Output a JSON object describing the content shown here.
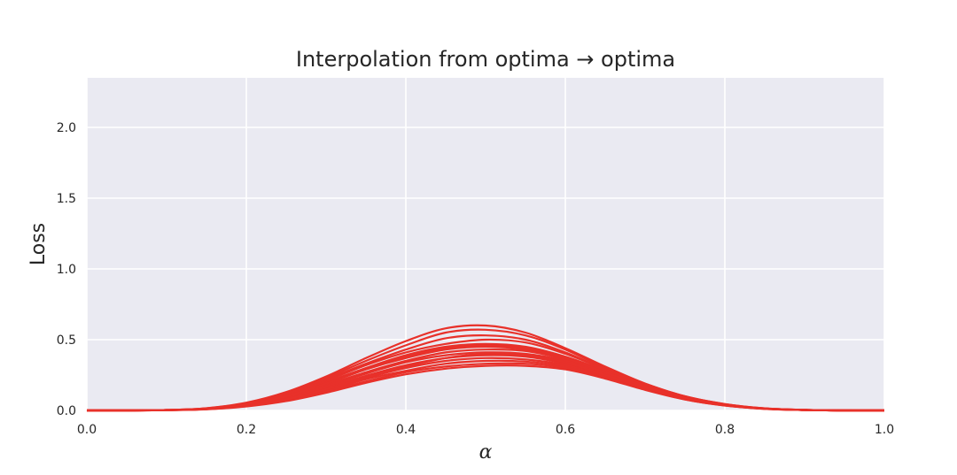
{
  "chart_data": {
    "type": "line",
    "title": "Interpolation from optima → optima",
    "xlabel": "α",
    "ylabel": "Loss",
    "xlim": [
      0.0,
      1.0
    ],
    "ylim": [
      0.0,
      2.35
    ],
    "xticks": [
      0.0,
      0.2,
      0.4,
      0.6,
      0.8,
      1.0
    ],
    "xtick_labels": [
      "0.0",
      "0.2",
      "0.4",
      "0.6",
      "0.8",
      "1.0"
    ],
    "yticks": [
      0.0,
      0.5,
      1.0,
      1.5,
      2.0
    ],
    "ytick_labels": [
      "0.0",
      "0.5",
      "1.0",
      "1.5",
      "2.0"
    ],
    "grid": true,
    "background_color": "#eaeaf2",
    "grid_color": "#ffffff",
    "line_color": "#e8312a",
    "x": [
      0.0,
      0.05,
      0.1,
      0.15,
      0.2,
      0.25,
      0.3,
      0.35,
      0.4,
      0.45,
      0.5,
      0.55,
      0.6,
      0.65,
      0.7,
      0.75,
      0.8,
      0.85,
      0.9,
      0.95,
      1.0
    ],
    "series": [
      {
        "values": [
          0.0,
          0.0,
          0.003,
          0.016,
          0.055,
          0.13,
          0.24,
          0.37,
          0.49,
          0.58,
          0.6,
          0.55,
          0.44,
          0.31,
          0.19,
          0.1,
          0.045,
          0.015,
          0.004,
          0.0,
          0.0
        ]
      },
      {
        "values": [
          0.0,
          0.0,
          0.003,
          0.015,
          0.052,
          0.125,
          0.23,
          0.35,
          0.46,
          0.55,
          0.57,
          0.53,
          0.43,
          0.3,
          0.19,
          0.1,
          0.045,
          0.015,
          0.004,
          0.0,
          0.0
        ]
      },
      {
        "values": [
          0.0,
          0.0,
          0.003,
          0.014,
          0.05,
          0.118,
          0.22,
          0.33,
          0.43,
          0.51,
          0.53,
          0.5,
          0.41,
          0.29,
          0.18,
          0.095,
          0.042,
          0.014,
          0.004,
          0.0,
          0.0
        ]
      },
      {
        "values": [
          0.0,
          0.0,
          0.003,
          0.013,
          0.047,
          0.11,
          0.21,
          0.32,
          0.41,
          0.47,
          0.5,
          0.48,
          0.4,
          0.29,
          0.18,
          0.095,
          0.042,
          0.014,
          0.004,
          0.0,
          0.0
        ]
      },
      {
        "values": [
          0.0,
          0.0,
          0.003,
          0.013,
          0.045,
          0.105,
          0.2,
          0.3,
          0.39,
          0.45,
          0.47,
          0.45,
          0.38,
          0.28,
          0.17,
          0.09,
          0.04,
          0.013,
          0.003,
          0.0,
          0.0
        ]
      },
      {
        "values": [
          0.0,
          0.0,
          0.002,
          0.012,
          0.042,
          0.1,
          0.19,
          0.29,
          0.37,
          0.43,
          0.45,
          0.43,
          0.37,
          0.27,
          0.17,
          0.09,
          0.04,
          0.013,
          0.003,
          0.0,
          0.0
        ]
      },
      {
        "values": [
          0.0,
          0.0,
          0.002,
          0.011,
          0.04,
          0.095,
          0.18,
          0.27,
          0.35,
          0.41,
          0.43,
          0.42,
          0.36,
          0.27,
          0.17,
          0.09,
          0.04,
          0.013,
          0.003,
          0.0,
          0.0
        ]
      },
      {
        "values": [
          0.0,
          0.0,
          0.002,
          0.011,
          0.038,
          0.09,
          0.17,
          0.26,
          0.34,
          0.39,
          0.41,
          0.4,
          0.35,
          0.26,
          0.16,
          0.088,
          0.039,
          0.012,
          0.003,
          0.0,
          0.0
        ]
      },
      {
        "values": [
          0.0,
          0.0,
          0.002,
          0.01,
          0.036,
          0.085,
          0.16,
          0.245,
          0.32,
          0.37,
          0.39,
          0.38,
          0.33,
          0.25,
          0.16,
          0.085,
          0.038,
          0.012,
          0.003,
          0.0,
          0.0
        ]
      },
      {
        "values": [
          0.0,
          0.0,
          0.002,
          0.01,
          0.034,
          0.08,
          0.15,
          0.23,
          0.3,
          0.35,
          0.37,
          0.36,
          0.32,
          0.24,
          0.155,
          0.083,
          0.037,
          0.012,
          0.003,
          0.0,
          0.0
        ]
      },
      {
        "values": [
          0.0,
          0.0,
          0.002,
          0.009,
          0.032,
          0.075,
          0.14,
          0.22,
          0.28,
          0.33,
          0.35,
          0.345,
          0.31,
          0.235,
          0.15,
          0.08,
          0.036,
          0.012,
          0.003,
          0.0,
          0.0
        ]
      },
      {
        "values": [
          0.0,
          0.0,
          0.002,
          0.009,
          0.03,
          0.07,
          0.135,
          0.205,
          0.27,
          0.31,
          0.33,
          0.33,
          0.3,
          0.23,
          0.148,
          0.078,
          0.035,
          0.011,
          0.003,
          0.0,
          0.0
        ]
      },
      {
        "values": [
          0.0,
          0.0,
          0.002,
          0.008,
          0.028,
          0.066,
          0.125,
          0.195,
          0.255,
          0.295,
          0.315,
          0.315,
          0.29,
          0.225,
          0.145,
          0.077,
          0.034,
          0.011,
          0.003,
          0.0,
          0.0
        ]
      },
      {
        "values": [
          0.0,
          0.0,
          0.002,
          0.009,
          0.033,
          0.078,
          0.15,
          0.235,
          0.31,
          0.37,
          0.4,
          0.39,
          0.34,
          0.25,
          0.16,
          0.085,
          0.038,
          0.012,
          0.003,
          0.0,
          0.0
        ]
      },
      {
        "values": [
          0.0,
          0.0,
          0.003,
          0.012,
          0.043,
          0.1,
          0.19,
          0.29,
          0.38,
          0.44,
          0.46,
          0.44,
          0.37,
          0.27,
          0.17,
          0.09,
          0.04,
          0.013,
          0.003,
          0.0,
          0.0
        ]
      }
    ]
  }
}
